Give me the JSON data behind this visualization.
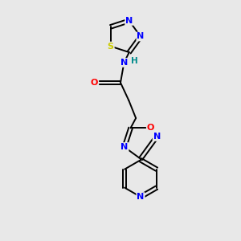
{
  "bg_color": "#e8e8e8",
  "bond_color": "#000000",
  "atom_colors": {
    "N": "#0000ff",
    "O": "#ff0000",
    "S": "#cccc00",
    "C": "#000000",
    "H": "#008b8b"
  },
  "font_size": 8.0,
  "lw": 1.4,
  "fig_size": [
    3.0,
    3.0
  ],
  "dpi": 100
}
